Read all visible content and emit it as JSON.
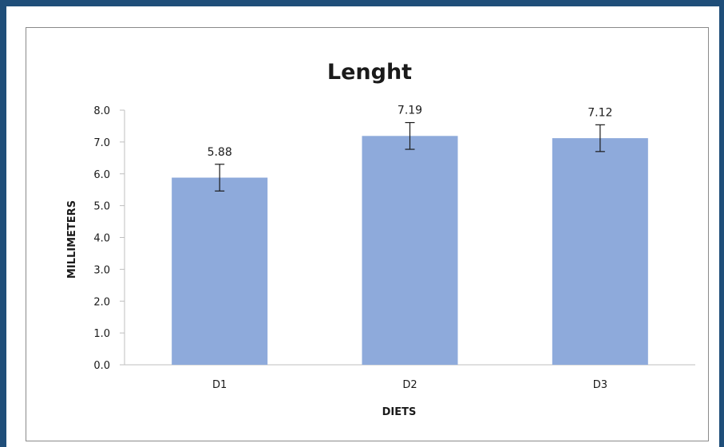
{
  "chart_data": {
    "type": "bar",
    "title": "Lenght",
    "xlabel": "DIETS",
    "ylabel": "MILLIMETERS",
    "categories": [
      "D1",
      "D2",
      "D3"
    ],
    "values": [
      5.88,
      7.19,
      7.12
    ],
    "value_labels": [
      "5.88",
      "7.19",
      "7.12"
    ],
    "error_plus_minus": [
      0.42,
      0.42,
      0.42
    ],
    "ylim": [
      0,
      8
    ],
    "yticks": [
      "0.0",
      "1.0",
      "2.0",
      "3.0",
      "4.0",
      "5.0",
      "6.0",
      "7.0",
      "8.0"
    ],
    "grid": false,
    "legend": "none",
    "bar_color": "#8eaadb"
  }
}
